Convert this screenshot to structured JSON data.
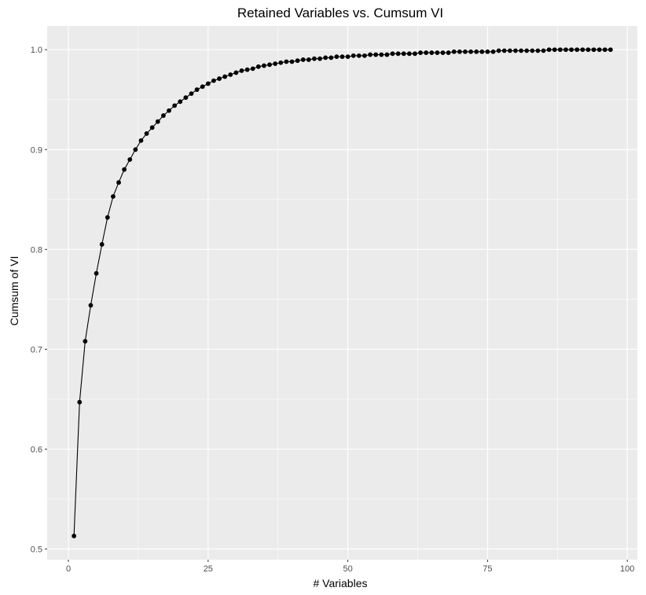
{
  "chart_data": {
    "type": "line",
    "title": "Retained Variables vs. Cumsum VI",
    "xlabel": "# Variables",
    "ylabel": "Cumsum of VI",
    "xlim": [
      -3.8,
      101.8
    ],
    "ylim": [
      0.4893,
      1.0238
    ],
    "x_ticks": [
      0,
      25,
      50,
      75,
      100
    ],
    "x_tick_labels": [
      "0",
      "25",
      "50",
      "75",
      "100"
    ],
    "y_ticks": [
      0.5,
      0.6,
      0.7,
      0.8,
      0.9,
      1.0
    ],
    "y_tick_labels": [
      "0.5",
      "0.6",
      "0.7",
      "0.8",
      "0.9",
      "1.0"
    ],
    "grid": true,
    "markers": true,
    "series": [
      {
        "x": [
          1,
          2,
          3,
          4,
          5,
          6,
          7,
          8,
          9,
          10,
          11,
          12,
          13,
          14,
          15,
          16,
          17,
          18,
          19,
          20,
          21,
          22,
          23,
          24,
          25,
          26,
          27,
          28,
          29,
          30,
          31,
          32,
          33,
          34,
          35,
          36,
          37,
          38,
          39,
          40,
          41,
          42,
          43,
          44,
          45,
          46,
          47,
          48,
          49,
          50,
          51,
          52,
          53,
          54,
          55,
          56,
          57,
          58,
          59,
          60,
          61,
          62,
          63,
          64,
          65,
          66,
          67,
          68,
          69,
          70,
          71,
          72,
          73,
          74,
          75,
          76,
          77,
          78,
          79,
          80,
          81,
          82,
          83,
          84,
          85,
          86,
          87,
          88,
          89,
          90,
          91,
          92,
          93,
          94,
          95,
          96,
          97
        ],
        "values": [
          0.513,
          0.647,
          0.708,
          0.744,
          0.776,
          0.805,
          0.832,
          0.853,
          0.867,
          0.88,
          0.89,
          0.9,
          0.909,
          0.916,
          0.922,
          0.928,
          0.934,
          0.939,
          0.944,
          0.948,
          0.952,
          0.956,
          0.96,
          0.963,
          0.966,
          0.969,
          0.971,
          0.973,
          0.975,
          0.977,
          0.979,
          0.98,
          0.981,
          0.983,
          0.984,
          0.985,
          0.986,
          0.987,
          0.988,
          0.988,
          0.989,
          0.99,
          0.99,
          0.991,
          0.991,
          0.992,
          0.992,
          0.993,
          0.993,
          0.993,
          0.994,
          0.994,
          0.994,
          0.995,
          0.995,
          0.995,
          0.995,
          0.996,
          0.996,
          0.996,
          0.996,
          0.996,
          0.997,
          0.997,
          0.997,
          0.997,
          0.997,
          0.997,
          0.998,
          0.998,
          0.998,
          0.998,
          0.998,
          0.998,
          0.998,
          0.998,
          0.999,
          0.999,
          0.999,
          0.999,
          0.999,
          0.999,
          0.999,
          0.999,
          0.999,
          1.0,
          1.0,
          1.0,
          1.0,
          1.0,
          1.0,
          1.0,
          1.0,
          1.0,
          1.0,
          1.0,
          1.0
        ]
      }
    ]
  },
  "colors": {
    "panel": "#ebebeb",
    "grid_major": "#ffffff",
    "line": "#000000",
    "tick_text": "#4d4d4d"
  }
}
